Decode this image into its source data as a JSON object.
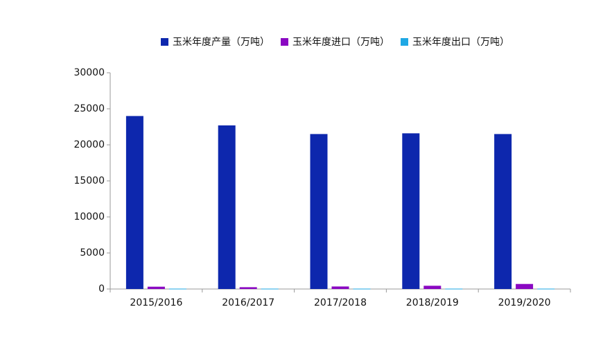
{
  "chart_data": {
    "type": "bar",
    "categories": [
      "2015/2016",
      "2016/2017",
      "2017/2018",
      "2018/2019",
      "2019/2020"
    ],
    "series": [
      {
        "name": "玉米年度产量（万吨）",
        "color": "#0d27ad",
        "values": [
          24000,
          22700,
          21500,
          21600,
          21500
        ]
      },
      {
        "name": "玉米年度进口（万吨）",
        "color": "#8a08c2",
        "values": [
          320,
          250,
          350,
          450,
          700
        ]
      },
      {
        "name": "玉米年度出口（万吨）",
        "color": "#1fa8e4",
        "values": [
          50,
          50,
          50,
          50,
          50
        ]
      }
    ],
    "ylim": [
      0,
      30000
    ],
    "yticks": [
      0,
      5000,
      10000,
      15000,
      20000,
      25000,
      30000
    ],
    "legend": "top"
  }
}
